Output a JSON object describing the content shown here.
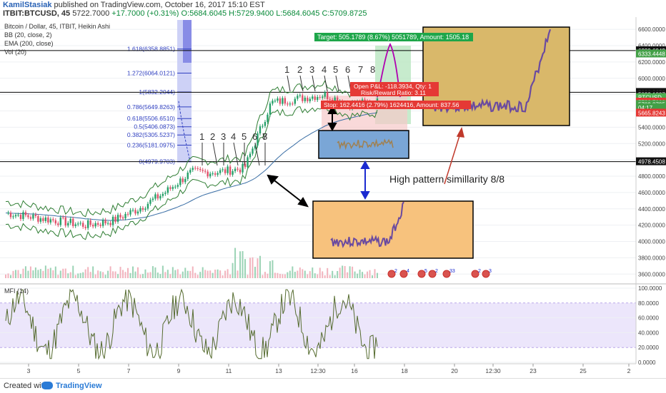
{
  "header": {
    "author": "KamilStasiak",
    "published": "published on TradingView.com, October 16, 2017 15:10 EST",
    "symbol": "ITBIT:BTCUSD, 45",
    "price": "5722.7000",
    "change": "+17.7000 (+0.31%)",
    "ohlc": "O:5684.6045 H:5729.9400 L:5684.6045 C:5709.8725"
  },
  "legend": {
    "title": "Bitcoin / Dollar, 45, ITBIT, Heikin Ashi",
    "bb": "BB (20, close, 2)",
    "ema": "EMA (200, close)",
    "vol": "Vol (20)",
    "mfi": "MFI (14)"
  },
  "fib_levels": [
    {
      "label": "1.618(6358.8851)",
      "value": 6358.8851
    },
    {
      "label": "1.272(6064.0121)",
      "value": 6064.0121
    },
    {
      "label": "1(5832.2044)",
      "value": 5832.2044
    },
    {
      "label": "0.786(5649.8263)",
      "value": 5649.8263
    },
    {
      "label": "0.618(5506.6510)",
      "value": 5506.651
    },
    {
      "label": "0.5(5406.0873)",
      "value": 5406.0873
    },
    {
      "label": "0.382(5305.5237)",
      "value": 5305.5237
    },
    {
      "label": "0.236(5181.0975)",
      "value": 5181.0975
    },
    {
      "label": "0(4979.9703)",
      "value": 4979.9703
    }
  ],
  "price_axis": {
    "ticks": [
      "6600.0000",
      "6400.0000",
      "6200.0000",
      "6000.0000",
      "5800.0000",
      "5600.0000",
      "5400.0000",
      "5200.0000",
      "5000.0000",
      "4800.0000",
      "4600.0000",
      "4400.0000",
      "4200.0000",
      "4000.0000",
      "3800.0000",
      "3600.0000"
    ],
    "badges": [
      {
        "text": "6339.6942",
        "value": 6339.6942,
        "bg": "#111111",
        "fg": "#ffffff"
      },
      {
        "text": "6333.4448",
        "value": 6300,
        "bg": "#43a047",
        "fg": "#ffffff"
      },
      {
        "text": "5828.2659",
        "value": 5828.2659,
        "bg": "#111111",
        "fg": "#ffffff"
      },
      {
        "text": "5823.1807",
        "value": 5800,
        "bg": "#111111",
        "fg": "#ffffff"
      },
      {
        "text": "BTCUSD",
        "value": 5765,
        "bg": "#4caf50",
        "fg": "#ffffff"
      },
      {
        "text": "5722.7000",
        "value": 5710,
        "bg": "#e53935",
        "fg": "#ffffff"
      },
      {
        "text": "5709.8725",
        "value": 5680,
        "bg": "#43a047",
        "fg": "#ffffff"
      },
      {
        "text": "04:17",
        "value": 5640,
        "bg": "#43a047",
        "fg": "#ffffff"
      },
      {
        "text": "5665.8243",
        "value": 5575,
        "bg": "#e53935",
        "fg": "#ffffff"
      },
      {
        "text": "4978.4508",
        "value": 4978.4508,
        "bg": "#111111",
        "fg": "#ffffff"
      }
    ]
  },
  "mfi_axis": {
    "ticks": [
      "100.0000",
      "80.0000",
      "60.0000",
      "40.0000",
      "20.0000",
      "0.0000"
    ]
  },
  "time_axis": {
    "ticks": [
      "3",
      "5",
      "7",
      "9",
      "11",
      "13",
      "12:30",
      "16",
      "18",
      "20",
      "12:30",
      "23",
      "25",
      "2"
    ]
  },
  "trade": {
    "target": "Target: 505.1789 (8.67%) 5051789, Amount: 1505.18",
    "pnl": "Open P&L: -118.3934, Qty: 1",
    "rr": "Risk/Reward Ratio: 3.11",
    "stop": "Stop: 162.4416 (2.79%) 1624416, Amount: 837.56"
  },
  "annotation": "High pattern simillarity 8/8",
  "count_labels": [
    "1",
    "2",
    "3",
    "4",
    "5",
    "6",
    "7",
    "8"
  ],
  "event_labels": [
    "2",
    "4",
    "5",
    "2",
    "33",
    "2",
    "3"
  ],
  "footer": {
    "created": "Created with",
    "brand": "TradingView"
  },
  "chart_data": {
    "type": "candlestick",
    "title": "Bitcoin / Dollar, 45, ITBIT, Heikin Ashi",
    "series": [
      {
        "name": "BTCUSD",
        "x": [
          "3",
          "4",
          "5",
          "6",
          "7",
          "8",
          "9",
          "10",
          "11",
          "12",
          "13",
          "14",
          "15",
          "16",
          "16.5"
        ],
        "values": [
          4350,
          4300,
          4250,
          4200,
          4250,
          4400,
          4600,
          4850,
          4850,
          4900,
          5700,
          5750,
          5800,
          5680,
          5709.8725
        ]
      }
    ],
    "ylim": [
      3550,
      6680
    ],
    "mfi": {
      "ylim": [
        0,
        100
      ]
    },
    "grid": true
  }
}
